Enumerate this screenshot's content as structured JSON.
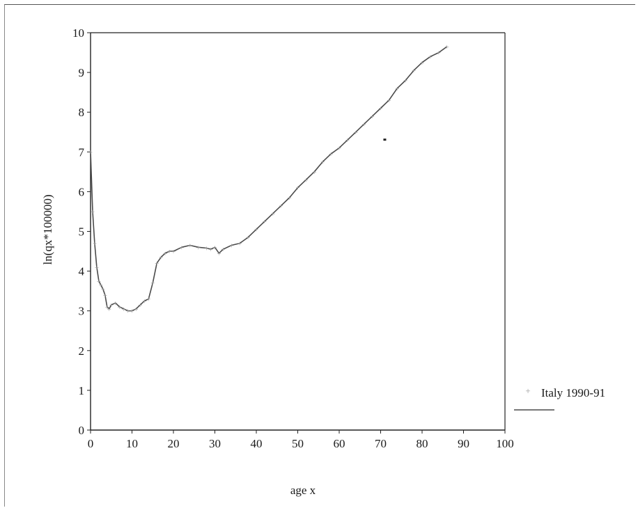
{
  "chart_data": {
    "type": "line",
    "title": "",
    "xlabel": "age x",
    "ylabel": "ln(qx*100000)",
    "xlim": [
      0,
      100
    ],
    "ylim": [
      0,
      10
    ],
    "x_ticks": [
      "0",
      "10",
      "20",
      "30",
      "40",
      "50",
      "60",
      "70",
      "80",
      "90",
      "100"
    ],
    "y_ticks": [
      "0",
      "1",
      "2",
      "3",
      "4",
      "5",
      "6",
      "7",
      "8",
      "9",
      "10"
    ],
    "legend": {
      "position": "right",
      "label": "Italy 1990-91"
    },
    "grid": false,
    "colors": {
      "series": "#4a4a4a",
      "markers": "#9a9a9a"
    },
    "series": [
      {
        "name": "Italy 1990-91",
        "x": [
          0,
          0.5,
          1,
          1.5,
          2,
          2.5,
          3,
          3.5,
          4,
          4.5,
          5,
          6,
          7,
          8,
          9,
          10,
          11,
          12,
          13,
          14,
          15,
          16,
          17,
          18,
          19,
          20,
          22,
          24,
          26,
          28,
          29,
          30,
          31,
          32,
          34,
          36,
          38,
          40,
          42,
          44,
          46,
          48,
          50,
          52,
          54,
          56,
          58,
          60,
          62,
          64,
          66,
          68,
          70,
          72,
          74,
          76,
          78,
          80,
          82,
          84,
          86
        ],
        "y": [
          7.0,
          5.5,
          4.7,
          4.1,
          3.75,
          3.65,
          3.55,
          3.4,
          3.1,
          3.05,
          3.15,
          3.2,
          3.1,
          3.05,
          3.0,
          3.0,
          3.05,
          3.15,
          3.25,
          3.3,
          3.7,
          4.2,
          4.35,
          4.45,
          4.5,
          4.5,
          4.6,
          4.65,
          4.6,
          4.58,
          4.55,
          4.6,
          4.45,
          4.55,
          4.65,
          4.7,
          4.85,
          5.05,
          5.25,
          5.45,
          5.65,
          5.85,
          6.1,
          6.3,
          6.5,
          6.75,
          6.95,
          7.1,
          7.3,
          7.5,
          7.7,
          7.9,
          8.1,
          8.3,
          8.6,
          8.8,
          9.05,
          9.25,
          9.4,
          9.5,
          9.65
        ]
      }
    ],
    "annotation": {
      "x": 71,
      "y": 7.3
    }
  }
}
